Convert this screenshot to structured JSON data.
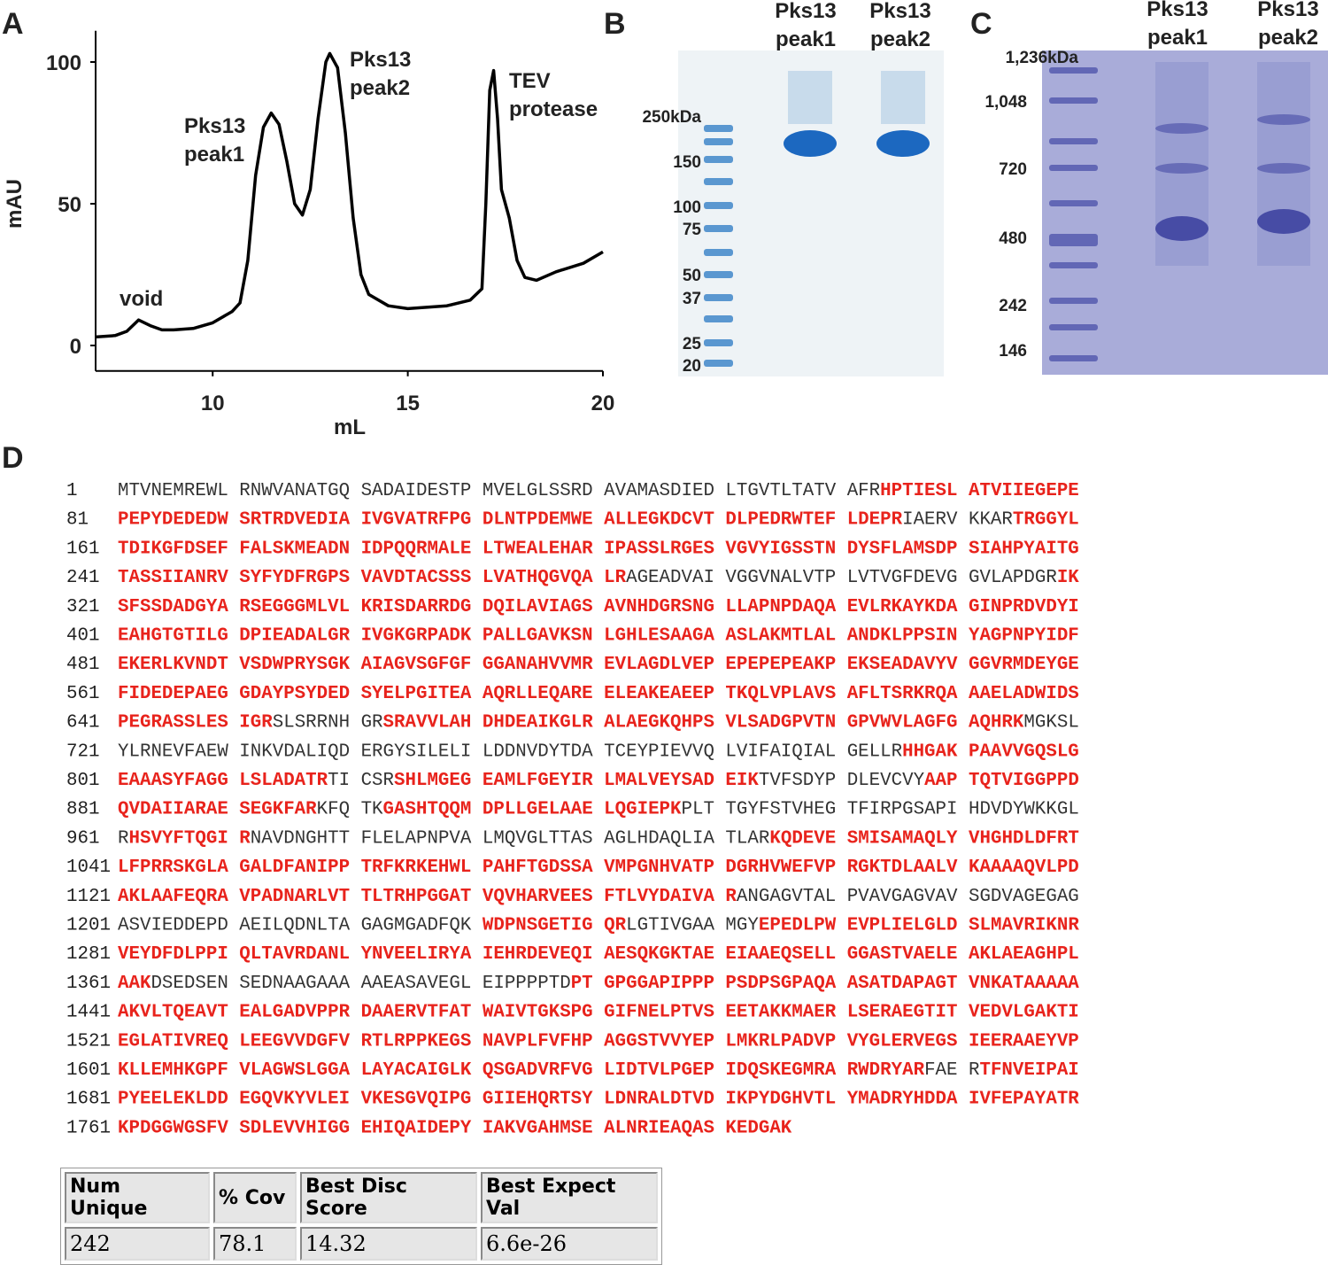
{
  "chart_data": {
    "type": "line",
    "panel_label": "A",
    "x_label": "mL",
    "y_label": "mAU",
    "x": [
      7.0,
      7.5,
      7.8,
      8.1,
      8.4,
      8.7,
      9.0,
      9.5,
      10.0,
      10.5,
      10.7,
      10.9,
      11.1,
      11.3,
      11.5,
      11.7,
      11.9,
      12.1,
      12.3,
      12.5,
      12.7,
      12.9,
      13.0,
      13.2,
      13.4,
      13.6,
      13.8,
      14.0,
      14.5,
      15.0,
      16.0,
      16.6,
      16.9,
      17.0,
      17.1,
      17.2,
      17.3,
      17.4,
      17.6,
      17.8,
      18.0,
      18.3,
      18.8,
      19.5,
      20.0
    ],
    "values": [
      3,
      3.5,
      5,
      9,
      7,
      5.5,
      5.5,
      6,
      8,
      12,
      15,
      30,
      60,
      77,
      82,
      78,
      65,
      50,
      46,
      55,
      80,
      100,
      103,
      98,
      75,
      45,
      25,
      18,
      14,
      13,
      14,
      16,
      20,
      50,
      90,
      97,
      80,
      55,
      45,
      30,
      24,
      23,
      26,
      29,
      33
    ],
    "color": "#000000",
    "xlim": [
      7,
      20
    ],
    "ylim": [
      -9,
      111
    ],
    "xticks": [
      10,
      15,
      20
    ],
    "yticks": [
      0,
      50,
      100
    ],
    "annotations": [
      [
        "void"
      ],
      [
        "Pks13",
        "peak1"
      ],
      [
        "Pks13",
        "peak2"
      ],
      [
        "TEV",
        "protease"
      ]
    ]
  },
  "gel_b": {
    "label": "B",
    "lanes": [
      [
        "Pks13",
        "peak1"
      ],
      [
        "Pks13",
        "peak2"
      ]
    ],
    "markers": [
      "250kDa",
      "150",
      "100",
      "75",
      "50",
      "37",
      "25",
      "20"
    ]
  },
  "gel_c": {
    "label": "C",
    "lanes": [
      [
        "Pks13",
        "peak1"
      ],
      [
        "Pks13",
        "peak2"
      ]
    ],
    "markers": [
      "1,236kDa",
      "1,048",
      "720",
      "480",
      "242",
      "146"
    ]
  },
  "sequence": {
    "label": "D",
    "rows": [
      {
        "start": "1",
        "segments": [
          {
            "text": "MTVNEMREWL RNWVANATGQ SADAIDESTP MVELGLSSRD AVAMASDIED LTGVTLTATV AFR",
            "covered": false
          },
          {
            "text": "HPTIESL ATVIIEGEPE",
            "covered": true
          }
        ]
      },
      {
        "start": "81",
        "segments": [
          {
            "text": "PEPYDEDEDW SRTRDVEDIA IVGVATRFPG DLNTPDEMWE ALLEGKDCVT DLPEDRWTEF LDEPR",
            "covered": true
          },
          {
            "text": "IAERV KKAR",
            "covered": false
          },
          {
            "text": "TRGGYL",
            "covered": true
          }
        ]
      },
      {
        "start": "161",
        "segments": [
          {
            "text": "TDIKGFDSEF FALSKMEADN IDPQQRMALE LTWEALEHAR IPASSLRGES VGVYIGSSTN DYSFLAMSDP SIAHPYAITG",
            "covered": true
          }
        ]
      },
      {
        "start": "241",
        "segments": [
          {
            "text": "TASSIIANRV SYFYDFRGPS VAVDTACSSS LVATHQGVQA LR",
            "covered": true
          },
          {
            "text": "AGEADVAI VGGVNALVTP LVTVGFDEVG GVLAPDGR",
            "covered": false
          },
          {
            "text": "IK",
            "covered": true
          }
        ]
      },
      {
        "start": "321",
        "segments": [
          {
            "text": "SFSSDADGYA RSEGGGMLVL KRISDARRDG DQILAVIAGS AVNHDGRSNG LLAPNPDAQA EVLRKAYKDA GINPRDVDYI",
            "covered": true
          }
        ]
      },
      {
        "start": "401",
        "segments": [
          {
            "text": "EAHGTGTILG DPIEADALGR IVGKGRPADK PALLGAVKSN LGHLESAAGA ASLAKMTLAL ANDKLPPSIN YAGPNPYIDF",
            "covered": true
          }
        ]
      },
      {
        "start": "481",
        "segments": [
          {
            "text": "EKERLKVNDT VSDWPRYSGK AIAGVSGFGF GGANAHVVMR EVLAGDLVEP EPEPEPEAKP EKSEADAVYV GGVRMDEYGE",
            "covered": true
          }
        ]
      },
      {
        "start": "561",
        "segments": [
          {
            "text": "FIDEDEPAEG GDAYPSYDED SYELPGITEA AQRLLEQARE ELEAKEAEEP TKQLVPLAVS AFLTSRKRQA AAELADWIDS",
            "covered": true
          }
        ]
      },
      {
        "start": "641",
        "segments": [
          {
            "text": "PEGRASSLES IGR",
            "covered": true
          },
          {
            "text": "SLSRRNH GR",
            "covered": false
          },
          {
            "text": "SRAVVLAH DHDEAIKGLR ALAEGKQHPS VLSADGPVTN GPVWVLAGFG AQHRK",
            "covered": true
          },
          {
            "text": "MGKSL",
            "covered": false
          }
        ]
      },
      {
        "start": "721",
        "segments": [
          {
            "text": "YLRNEVFAEW INKVDALIQD ERGYSILELI LDDNVDYTDA TCEYPIEVVQ LVIFAIQIAL GELLR",
            "covered": false
          },
          {
            "text": "HHGAK PAAVVGQSLG",
            "covered": true
          }
        ]
      },
      {
        "start": "801",
        "segments": [
          {
            "text": "EAAASYFAGG LSLADATR",
            "covered": true
          },
          {
            "text": "TI CSR",
            "covered": false
          },
          {
            "text": "SHLMGEG EAMLFGEYIR LMALVEYSAD EIK",
            "covered": true
          },
          {
            "text": "TVFSDYP DLEVCVY",
            "covered": false
          },
          {
            "text": "AAP TQTVIGGPPD",
            "covered": true
          }
        ]
      },
      {
        "start": "881",
        "segments": [
          {
            "text": "QVDAIIARAE SEGKFAR",
            "covered": true
          },
          {
            "text": "KFQ TK",
            "covered": false
          },
          {
            "text": "GASHTQQM DPLLGELAAE LQGIEPK",
            "covered": true
          },
          {
            "text": "PLT TGYFSTVHEG TFIRPGSAPI HDVDYWKKGL",
            "covered": false
          }
        ]
      },
      {
        "start": "961",
        "segments": [
          {
            "text": "R",
            "covered": false
          },
          {
            "text": "HSVYFTQGI R",
            "covered": true
          },
          {
            "text": "NAVDNGHTT FLELAPNPVA LMQVGLTTAS AGLHDAQLIA TLAR",
            "covered": false
          },
          {
            "text": "KQDEVE SMISAMAQLY VHGHDLDFRT",
            "covered": true
          }
        ]
      },
      {
        "start": "1041",
        "segments": [
          {
            "text": "LFPRRSKGLA GALDFANIPP TRFKRKEHWL PAHFTGDSSA VMPGNHVATP DGRHVWEFVP RGKTDLAALV KAAAAQVLPD",
            "covered": true
          }
        ]
      },
      {
        "start": "1121",
        "segments": [
          {
            "text": "AKLAAFEQRA VPADNARLVT TLTRHPGGAT VQVHARVEES FTLVYDAIVA R",
            "covered": true
          },
          {
            "text": "ANGAGVTAL PVAVGAGVAV SGDVAGEGAG",
            "covered": false
          }
        ]
      },
      {
        "start": "1201",
        "segments": [
          {
            "text": "ASVIEDDEPD AEILQDNLTA GAGMGADFQK ",
            "covered": false
          },
          {
            "text": "WDPNSGETIG QR",
            "covered": true
          },
          {
            "text": "LGTIVGAA MGY",
            "covered": false
          },
          {
            "text": "EPEDLPW EVPLIELGLD SLMAVRIKNR",
            "covered": true
          }
        ]
      },
      {
        "start": "1281",
        "segments": [
          {
            "text": "VEYDFDLPPI QLTAVRDANL YNVEELIRYA IEHRDEVEQI AESQKGKTAE EIAAEQSELL GGASTVAELE AKLAEAGHPL",
            "covered": true
          }
        ]
      },
      {
        "start": "1361",
        "segments": [
          {
            "text": "AAK",
            "covered": true
          },
          {
            "text": "DSEDSEN SEDNAAGAAA AAEASAVEGL EIPPPPTD",
            "covered": false
          },
          {
            "text": "PT GPGGAPIPPP PSDPSGPAQA ASATDAPAGT VNKATAAAAA",
            "covered": true
          }
        ]
      },
      {
        "start": "1441",
        "segments": [
          {
            "text": "AKVLTQEAVT EALGADVPPR DAAERVTFAT WAIVTGKSPG GIFNELPTVS EETAKKMAER LSERAEGTIT VEDVLGAKTI",
            "covered": true
          }
        ]
      },
      {
        "start": "1521",
        "segments": [
          {
            "text": "EGLATIVREQ LEEGVVDGFV RTLRPPKEGS NAVPLFVFHP AGGSTVVYEP LMKRLPADVP VYGLERVEGS IEERAAEYVP",
            "covered": true
          }
        ]
      },
      {
        "start": "1601",
        "segments": [
          {
            "text": "KLLEMHKGPF VLAGWSLGGA LAYACAIGLK QSGADVRFVG LIDTVLPGEP IDQSKEGMRA RWDRYAR",
            "covered": true
          },
          {
            "text": "FAE R",
            "covered": false
          },
          {
            "text": "TFNVEIPAI",
            "covered": true
          }
        ]
      },
      {
        "start": "1681",
        "segments": [
          {
            "text": "PYEELEKLDD EGQVKYVLEI VKESGVQIPG GIIEHQRTSY LDNRALDTVD IKPYDGHVTL YMADRYHDDA IVFEPAYATR",
            "covered": true
          }
        ]
      },
      {
        "start": "1761",
        "segments": [
          {
            "text": "KPDGGWGSFV SDLEVVHIGG EHIQAIDEPY IAKVGAHMSE ALNRIEAQAS KEDGAK",
            "covered": true
          }
        ]
      }
    ]
  },
  "table": {
    "header": [
      "Num Unique",
      "% Cov",
      "Best Disc Score",
      "Best Expect Val"
    ],
    "rows": [
      [
        "242",
        "78.1",
        "14.32",
        "6.6e-26"
      ]
    ]
  }
}
